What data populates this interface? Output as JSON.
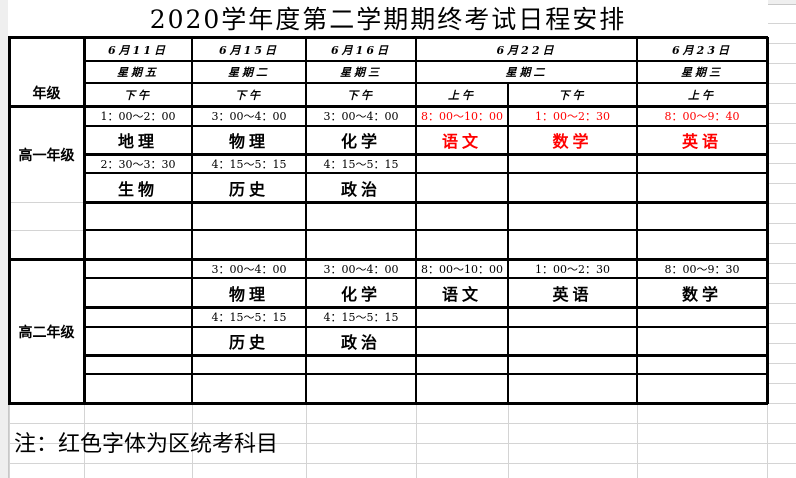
{
  "title": "2020学年度第二学期期终考试日程安排",
  "header": {
    "grade_label": "年级",
    "dates": [
      "6月11日",
      "6月15日",
      "6月16日",
      "6月22日",
      "6月23日"
    ],
    "weekdays": [
      "星期五",
      "星期二",
      "星期三",
      "星期二",
      "星期三"
    ],
    "periods": [
      "下午",
      "下午",
      "下午",
      "上午",
      "下午",
      "上午"
    ]
  },
  "grade1": {
    "label": "高一年级",
    "columns": [
      [
        {
          "time": "1：00～2：00",
          "subject": "地理",
          "unified": false
        },
        {
          "time": "2：30～3：30",
          "subject": "生物",
          "unified": false
        }
      ],
      [
        {
          "time": "3：00～4：00",
          "subject": "物理",
          "unified": false
        },
        {
          "time": "4：15～5：15",
          "subject": "历史",
          "unified": false
        }
      ],
      [
        {
          "time": "3：00～4：00",
          "subject": "化学",
          "unified": false
        },
        {
          "time": "4：15～5：15",
          "subject": "政治",
          "unified": false
        }
      ],
      [
        {
          "time": "8：00～10：00",
          "subject": "语文",
          "unified": true
        }
      ],
      [
        {
          "time": "1：00～2：30",
          "subject": "数学",
          "unified": true
        }
      ],
      [
        {
          "time": "8：00～9：40",
          "subject": "英语",
          "unified": true
        }
      ]
    ]
  },
  "grade2": {
    "label": "高二年级",
    "columns": [
      [],
      [
        {
          "time": "3：00～4：00",
          "subject": "物理",
          "unified": false
        },
        {
          "time": "4：15～5：15",
          "subject": "历史",
          "unified": false
        }
      ],
      [
        {
          "time": "3：00～4：00",
          "subject": "化学",
          "unified": false
        },
        {
          "time": "4：15～5：15",
          "subject": "政治",
          "unified": false
        }
      ],
      [
        {
          "time": "8：00～10：00",
          "subject": "语文",
          "unified": false
        }
      ],
      [
        {
          "time": "1：00～2：30",
          "subject": "英语",
          "unified": false
        }
      ],
      [
        {
          "time": "8：00～9：30",
          "subject": "数学",
          "unified": false
        }
      ]
    ]
  },
  "note": "注：红色字体为区统考科目",
  "colors": {
    "unified_exam": "#ff0000",
    "border": "#000000",
    "gridline": "#d4d4d4"
  }
}
